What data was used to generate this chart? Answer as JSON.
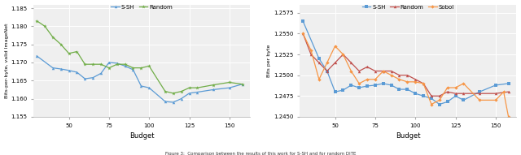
{
  "left": {
    "ssh_x": [
      30,
      40,
      45,
      50,
      55,
      60,
      65,
      70,
      75,
      80,
      85,
      90,
      95,
      100,
      110,
      115,
      120,
      125,
      130,
      140,
      150,
      158
    ],
    "ssh_y": [
      1.1718,
      1.1685,
      1.1682,
      1.1678,
      1.1673,
      1.1655,
      1.1658,
      1.167,
      1.17,
      1.1698,
      1.169,
      1.168,
      1.1635,
      1.163,
      1.1592,
      1.159,
      1.16,
      1.1615,
      1.1618,
      1.1625,
      1.163,
      1.164
    ],
    "random_x": [
      30,
      35,
      40,
      45,
      50,
      55,
      60,
      65,
      70,
      75,
      80,
      85,
      90,
      95,
      100,
      110,
      115,
      120,
      125,
      130,
      140,
      150,
      158
    ],
    "random_y": [
      1.1815,
      1.18,
      1.177,
      1.175,
      1.1725,
      1.173,
      1.1695,
      1.1695,
      1.1695,
      1.1685,
      1.1695,
      1.1695,
      1.1685,
      1.1685,
      1.169,
      1.162,
      1.1615,
      1.162,
      1.163,
      1.163,
      1.1638,
      1.1645,
      1.164
    ],
    "ylim": [
      1.155,
      1.186
    ],
    "yticks": [
      1.155,
      1.16,
      1.165,
      1.17,
      1.175,
      1.18,
      1.185
    ],
    "xlim": [
      28,
      163
    ],
    "xticks": [
      50,
      75,
      100,
      125,
      150
    ],
    "xlabel": "Budget",
    "ylabel": "Bits-per-byte, valid ImageNet",
    "ssh_color": "#5b9bd5",
    "random_color": "#70ad47",
    "ssh_label": "S-SH",
    "random_label": "Random"
  },
  "right": {
    "ssh_x": [
      30,
      40,
      45,
      50,
      55,
      60,
      65,
      70,
      75,
      80,
      85,
      90,
      95,
      100,
      105,
      110,
      115,
      120,
      125,
      130,
      140,
      150,
      158
    ],
    "ssh_y": [
      1.2565,
      1.252,
      1.2505,
      1.248,
      1.2482,
      1.2488,
      1.2485,
      1.2487,
      1.2488,
      1.249,
      1.2488,
      1.2483,
      1.2483,
      1.2478,
      1.2475,
      1.2472,
      1.2465,
      1.2468,
      1.2475,
      1.247,
      1.248,
      1.2488,
      1.249
    ],
    "random_x": [
      30,
      35,
      40,
      45,
      50,
      55,
      60,
      65,
      70,
      75,
      80,
      85,
      90,
      95,
      100,
      105,
      110,
      115,
      120,
      125,
      130,
      140,
      150,
      158
    ],
    "random_y": [
      1.255,
      1.2525,
      1.2515,
      1.2505,
      1.2515,
      1.2525,
      1.2515,
      1.2505,
      1.251,
      1.2505,
      1.2505,
      1.2505,
      1.25,
      1.25,
      1.2495,
      1.249,
      1.2475,
      1.2475,
      1.248,
      1.2478,
      1.2478,
      1.2478,
      1.2478,
      1.248
    ],
    "sobol_x": [
      30,
      35,
      40,
      45,
      50,
      55,
      60,
      65,
      70,
      75,
      80,
      85,
      90,
      95,
      100,
      105,
      110,
      115,
      120,
      125,
      130,
      140,
      150,
      155,
      158
    ],
    "sobol_y": [
      1.255,
      1.253,
      1.2495,
      1.2515,
      1.2535,
      1.2525,
      1.2505,
      1.249,
      1.2495,
      1.2495,
      1.2505,
      1.25,
      1.2495,
      1.2492,
      1.2492,
      1.249,
      1.2465,
      1.247,
      1.2485,
      1.2485,
      1.249,
      1.247,
      1.247,
      1.248,
      1.245
    ],
    "ylim": [
      1.245,
      1.2585
    ],
    "yticks": [
      1.245,
      1.2475,
      1.25,
      1.2525,
      1.255,
      1.2575
    ],
    "xlim": [
      28,
      163
    ],
    "xticks": [
      50,
      75,
      100,
      125,
      150
    ],
    "xlabel": "Budget",
    "ylabel": "Bits per byte",
    "ssh_color": "#5b9bd5",
    "random_color": "#c0504d",
    "sobol_color": "#f79646",
    "ssh_label": "S-SH",
    "random_label": "Random",
    "sobol_label": "Sobol"
  },
  "fig_width": 6.4,
  "fig_height": 1.91,
  "bg_color": "#efefef",
  "caption": "Figure 3:  Comparison between the results of this work for S-SH and for random DITE"
}
